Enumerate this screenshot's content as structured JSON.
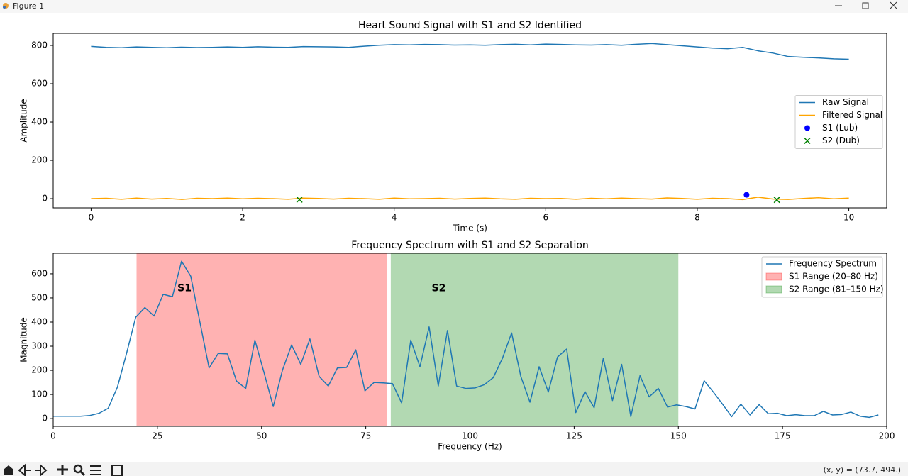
{
  "window": {
    "title": "Figure 1",
    "status": "(x, y) = (73.7, 494.)"
  },
  "chart_data": [
    {
      "type": "line",
      "title": "Heart Sound Signal with S1 and S2 Identified",
      "xlabel": "Time (s)",
      "ylabel": "Amplitude",
      "xlim": [
        -0.5,
        10.5
      ],
      "ylim": [
        -48,
        863
      ],
      "xticks": [
        0,
        2,
        4,
        6,
        8,
        10
      ],
      "yticks": [
        0,
        200,
        400,
        600,
        800
      ],
      "legend": "center right",
      "x": [
        0,
        0.2,
        0.4,
        0.6,
        0.8,
        1,
        1.2,
        1.4,
        1.6,
        1.8,
        2,
        2.2,
        2.4,
        2.6,
        2.8,
        3,
        3.2,
        3.4,
        3.6,
        3.8,
        4,
        4.2,
        4.4,
        4.6,
        4.8,
        5,
        5.2,
        5.4,
        5.6,
        5.8,
        6,
        6.2,
        6.4,
        6.6,
        6.8,
        7,
        7.2,
        7.4,
        7.6,
        7.8,
        8,
        8.2,
        8.4,
        8.6,
        8.8,
        9,
        9.2,
        9.4,
        9.6,
        9.8,
        10
      ],
      "series": [
        {
          "name": "Raw Signal",
          "color": "#1f77b4",
          "values": [
            795,
            790,
            788,
            792,
            790,
            788,
            791,
            789,
            790,
            792,
            790,
            793,
            791,
            790,
            794,
            793,
            792,
            790,
            796,
            801,
            804,
            803,
            805,
            804,
            802,
            803,
            801,
            804,
            806,
            803,
            807,
            805,
            803,
            802,
            804,
            801,
            806,
            810,
            804,
            798,
            792,
            786,
            783,
            790,
            772,
            760,
            742,
            738,
            735,
            730,
            728
          ]
        },
        {
          "name": "Filtered Signal",
          "color": "#ffa500",
          "values": [
            0,
            2,
            -3,
            3,
            -2,
            1,
            -4,
            2,
            0,
            3,
            -1,
            2,
            0,
            -3,
            3,
            1,
            -2,
            2,
            0,
            -3,
            3,
            -1,
            0,
            2,
            -2,
            1,
            3,
            -1,
            -3,
            2,
            0,
            1,
            -3,
            2,
            -1,
            3,
            0,
            -2,
            4,
            1,
            -3,
            2,
            0,
            -5,
            8,
            -2,
            -4,
            1,
            5,
            -1,
            3
          ]
        },
        {
          "name": "S1 (Lub)",
          "type": "scatter",
          "marker": "o",
          "color": "#0000ff",
          "x": [
            8.65
          ],
          "values": [
            20
          ]
        },
        {
          "name": "S2 (Dub)",
          "type": "scatter",
          "marker": "x",
          "color": "#008000",
          "x": [
            2.75,
            9.05
          ],
          "values": [
            -5,
            -6
          ]
        }
      ]
    },
    {
      "type": "line",
      "title": "Frequency Spectrum with S1 and S2 Separation",
      "xlabel": "Frequency (Hz)",
      "ylabel": "Magnitude",
      "xlim": [
        0,
        200
      ],
      "ylim": [
        -32,
        685
      ],
      "xticks": [
        0,
        25,
        50,
        75,
        100,
        125,
        150,
        175,
        200
      ],
      "yticks": [
        0,
        100,
        200,
        300,
        400,
        500,
        600
      ],
      "legend": "upper right",
      "x": [
        0,
        2.2,
        4.4,
        6.6,
        8.8,
        11,
        13.2,
        15.4,
        17.6,
        19.8,
        22,
        24.2,
        26.4,
        28.6,
        30.8,
        33,
        35.2,
        37.4,
        39.6,
        41.8,
        44,
        46.2,
        48.4,
        50.6,
        52.8,
        55,
        57.2,
        59.4,
        61.6,
        63.8,
        66,
        68.2,
        70.4,
        72.6,
        74.8,
        77,
        79.2,
        81.4,
        83.6,
        85.8,
        88,
        90.2,
        92.4,
        94.6,
        96.8,
        99,
        101.2,
        103.4,
        105.6,
        107.8,
        110,
        112.2,
        114.4,
        116.6,
        118.8,
        121,
        123.2,
        125.4,
        127.6,
        129.8,
        132,
        134.2,
        136.4,
        138.6,
        140.8,
        143,
        145.2,
        147.4,
        149.6,
        151.8,
        154,
        156.2,
        158.4,
        160.6,
        162.8,
        165,
        167.2,
        169.4,
        171.6,
        173.8,
        176,
        178.2,
        180.4,
        182.6,
        184.8,
        187,
        189.2,
        191.4,
        193.6,
        195.8,
        198
      ],
      "spans": [
        {
          "name": "S1 Range (20–80 Hz)",
          "color": "#ff0000",
          "alpha": 0.3,
          "range": [
            20,
            80
          ]
        },
        {
          "name": "S2 Range (81–150 Hz)",
          "color": "#008000",
          "alpha": 0.3,
          "range": [
            81,
            150
          ]
        }
      ],
      "series": [
        {
          "name": "Frequency Spectrum",
          "color": "#1f77b4",
          "values": [
            10,
            10,
            10,
            10,
            13,
            22,
            43,
            130,
            270,
            420,
            460,
            425,
            515,
            505,
            652,
            590,
            400,
            210,
            270,
            268,
            155,
            125,
            325,
            190,
            50,
            200,
            305,
            225,
            330,
            175,
            135,
            210,
            212,
            285,
            115,
            150,
            148,
            145,
            65,
            325,
            215,
            380,
            135,
            365,
            135,
            125,
            127,
            140,
            170,
            250,
            355,
            175,
            68,
            215,
            110,
            255,
            288,
            25,
            112,
            45,
            250,
            75,
            225,
            8,
            178,
            90,
            125,
            48,
            57,
            50,
            40,
            157,
            110,
            60,
            8,
            60,
            15,
            58,
            20,
            22,
            12,
            16,
            12,
            12,
            30,
            15,
            17,
            27,
            10,
            5,
            15
          ]
        }
      ],
      "annotations": [
        {
          "text": "S1",
          "x": 31.5,
          "y": 540,
          "color": "#ff0000"
        },
        {
          "text": "S2",
          "x": 92.5,
          "y": 540,
          "color": "#008000"
        }
      ]
    }
  ]
}
